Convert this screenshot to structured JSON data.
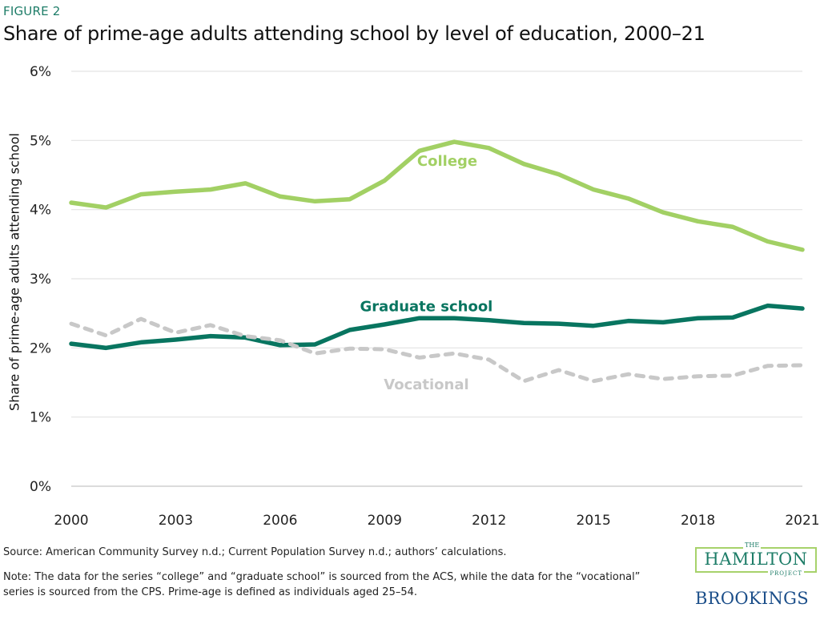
{
  "header": {
    "figure_label": "FIGURE 2",
    "title": "Share of prime-age adults attending school by level of education, 2000–21"
  },
  "chart_data": {
    "type": "line",
    "title": "Share of prime-age adults attending school by level of education, 2000–21",
    "xlabel": "",
    "ylabel": "Share of prime-age adults attending school",
    "x": [
      2000,
      2001,
      2002,
      2003,
      2004,
      2005,
      2006,
      2007,
      2008,
      2009,
      2010,
      2011,
      2012,
      2013,
      2014,
      2015,
      2016,
      2017,
      2018,
      2019,
      2020,
      2021
    ],
    "xticks": [
      "2000",
      "2003",
      "2006",
      "2009",
      "2012",
      "2015",
      "2018",
      "2021"
    ],
    "yticks": [
      "0%",
      "1%",
      "2%",
      "3%",
      "4%",
      "5%",
      "6%"
    ],
    "ylim": [
      0,
      6
    ],
    "grid": true,
    "series": [
      {
        "name": "College",
        "color": "#a2d064",
        "style": "solid",
        "values": [
          4.1,
          4.03,
          4.22,
          4.26,
          4.29,
          4.38,
          4.19,
          4.12,
          4.15,
          4.42,
          4.85,
          4.98,
          4.89,
          4.66,
          4.51,
          4.29,
          4.16,
          3.96,
          3.83,
          3.75,
          3.54,
          3.42
        ]
      },
      {
        "name": "Graduate school",
        "color": "#087560",
        "style": "solid",
        "values": [
          2.06,
          2.0,
          2.08,
          2.12,
          2.17,
          2.15,
          2.04,
          2.05,
          2.26,
          2.34,
          2.43,
          2.43,
          2.4,
          2.36,
          2.35,
          2.32,
          2.39,
          2.37,
          2.43,
          2.44,
          2.61,
          2.57
        ]
      },
      {
        "name": "Vocational",
        "color": "#c8c8c8",
        "style": "dashed",
        "values": [
          2.35,
          2.18,
          2.42,
          2.22,
          2.33,
          2.17,
          2.11,
          1.92,
          1.99,
          1.98,
          1.86,
          1.92,
          1.83,
          1.52,
          1.68,
          1.52,
          1.62,
          1.55,
          1.59,
          1.6,
          1.74,
          1.75
        ]
      }
    ]
  },
  "footer": {
    "source": "Source: American Community Survey n.d.; Current Population Survey n.d.; authors’ calculations.",
    "note": "Note: The data for the series “college” and “graduate school” is sourced from the ACS, while the data for the “vocational” series is sourced from the CPS. Prime-age is defined as individuals aged 25–54."
  },
  "logos": {
    "hamilton_the": "THE",
    "hamilton_name": "HAMILTON",
    "hamilton_project": "PROJECT",
    "brookings": "BROOKINGS"
  }
}
